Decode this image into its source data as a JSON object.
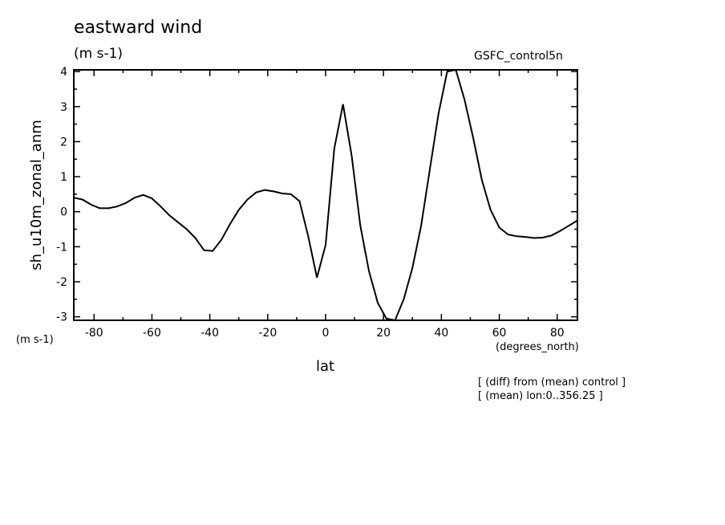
{
  "chart_data": {
    "type": "line",
    "title": "eastward wind",
    "subtitle": "(m s-1)",
    "model_label": "GSFC_control5n",
    "ylabel": "sh_u10m_zonal_anm",
    "y_units": "(m s-1)",
    "xlabel": "lat",
    "x_units": "(degrees_north)",
    "notes": [
      "[ (diff) from (mean) control ]",
      "[ (mean) lon:0..356.25 ]"
    ],
    "xlim": [
      -87,
      87
    ],
    "ylim": [
      -3.1,
      4.05
    ],
    "x_ticks": [
      -80,
      -60,
      -40,
      -20,
      0,
      20,
      40,
      60,
      80
    ],
    "x_tick_labels": [
      "-80",
      "-60",
      "-40",
      "-20",
      "0",
      "20",
      "40",
      "60",
      "80"
    ],
    "y_ticks": [
      -3,
      -2,
      -1,
      0,
      1,
      2,
      3,
      4
    ],
    "y_tick_labels": [
      "-3",
      "-2",
      "-1",
      "0",
      "1",
      "2",
      "3",
      "4"
    ],
    "grid": false,
    "series": [
      {
        "x": [
          -87,
          -84,
          -81,
          -78,
          -75,
          -72,
          -69,
          -66,
          -63,
          -60,
          -57,
          -54,
          -51,
          -48,
          -45,
          -42,
          -39,
          -36,
          -33,
          -30,
          -27,
          -24,
          -21,
          -18,
          -15,
          -12,
          -9,
          -6,
          -3,
          0,
          3,
          6,
          9,
          12,
          15,
          18,
          21,
          24,
          27,
          30,
          33,
          36,
          39,
          42,
          45,
          48,
          51,
          54,
          57,
          60,
          63,
          66,
          69,
          72,
          75,
          78,
          81,
          84,
          87
        ],
        "y": [
          0.4,
          0.35,
          0.2,
          0.1,
          0.1,
          0.15,
          0.25,
          0.4,
          0.48,
          0.38,
          0.15,
          -0.1,
          -0.3,
          -0.5,
          -0.75,
          -1.1,
          -1.12,
          -0.8,
          -0.35,
          0.05,
          0.35,
          0.55,
          0.62,
          0.58,
          0.52,
          0.5,
          0.3,
          -0.7,
          -1.88,
          -0.95,
          1.8,
          3.07,
          1.6,
          -0.4,
          -1.7,
          -2.6,
          -3.05,
          -3.1,
          -2.5,
          -1.6,
          -0.4,
          1.2,
          2.8,
          4.0,
          4.05,
          3.2,
          2.1,
          0.9,
          0.05,
          -0.45,
          -0.65,
          -0.7,
          -0.72,
          -0.75,
          -0.74,
          -0.68,
          -0.55,
          -0.4,
          -0.25
        ]
      }
    ]
  }
}
